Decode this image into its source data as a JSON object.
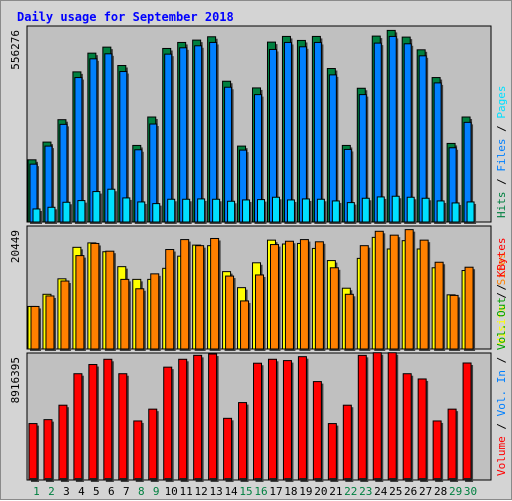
{
  "colors": {
    "hits": "#008040",
    "files": "#0080ff",
    "pages": "#00e0ff",
    "visits": "#ffff00",
    "sites": "#ff8000",
    "vol_in": "#ff0000",
    "vol_out": "#00a000",
    "weekend_label": "#008040",
    "title": "#0000ff",
    "plot_bg": "#c0c0c0",
    "outline": "#000000"
  },
  "chart_data": [
    {
      "type": "bar",
      "title": "Daily usage for September 2018",
      "ytick": "556276",
      "ymax": 556276,
      "categories": [
        "1",
        "2",
        "3",
        "4",
        "5",
        "6",
        "7",
        "8",
        "9",
        "10",
        "11",
        "12",
        "13",
        "14",
        "15",
        "16",
        "17",
        "18",
        "19",
        "20",
        "21",
        "22",
        "23",
        "24",
        "25",
        "26",
        "27",
        "28",
        "29",
        "30"
      ],
      "weekend_days": [
        "1",
        "2",
        "8",
        "9",
        "15",
        "16",
        "22",
        "23",
        "29",
        "30"
      ],
      "legend": [
        {
          "text": "Hits",
          "color_key": "hits"
        },
        {
          "text": "Files",
          "color_key": "files"
        },
        {
          "text": "Pages",
          "color_key": "pages"
        }
      ],
      "series": [
        {
          "name": "Hits",
          "values": [
            186000,
            239000,
            306000,
            449000,
            505000,
            523000,
            468000,
            229000,
            314000,
            519000,
            537000,
            544000,
            554000,
            421000,
            227000,
            401000,
            538000,
            555000,
            543000,
            555000,
            459000,
            229000,
            400000,
            556000,
            573000,
            553000,
            515000,
            432000,
            235000,
            314000
          ]
        },
        {
          "name": "Files",
          "values": [
            173000,
            227000,
            292000,
            432000,
            488000,
            503000,
            450000,
            216000,
            293000,
            502000,
            521000,
            527000,
            537000,
            403000,
            215000,
            381000,
            516000,
            537000,
            524000,
            537000,
            440000,
            217000,
            381000,
            535000,
            555000,
            533000,
            497000,
            416000,
            222000,
            298000
          ]
        },
        {
          "name": "Pages",
          "values": [
            39000,
            44000,
            59000,
            64000,
            91000,
            98000,
            72000,
            60000,
            55000,
            68000,
            68000,
            69000,
            68000,
            62000,
            66000,
            67000,
            74000,
            66000,
            69000,
            68000,
            63000,
            58000,
            71000,
            75000,
            77000,
            74000,
            71000,
            63000,
            57000,
            60000
          ]
        }
      ]
    },
    {
      "type": "bar",
      "ytick": "20449",
      "ymax": 20449,
      "categories": [
        "1",
        "2",
        "3",
        "4",
        "5",
        "6",
        "7",
        "8",
        "9",
        "10",
        "11",
        "12",
        "13",
        "14",
        "15",
        "16",
        "17",
        "18",
        "19",
        "20",
        "21",
        "22",
        "23",
        "24",
        "25",
        "26",
        "27",
        "28",
        "29",
        "30"
      ],
      "legend": [
        {
          "text": "Visits",
          "color_key": "visits"
        },
        {
          "text": "Sites",
          "color_key": "sites"
        }
      ],
      "series": [
        {
          "name": "Visits",
          "values": [
            7700,
            9900,
            12700,
            18400,
            19200,
            17600,
            14900,
            12600,
            12600,
            14600,
            16800,
            18800,
            18700,
            14000,
            11100,
            15600,
            19700,
            19000,
            19100,
            18200,
            16000,
            11000,
            16400,
            20200,
            18100,
            19600,
            18100,
            14700,
            9800,
            14200
          ]
        },
        {
          "name": "Sites",
          "values": [
            7700,
            9600,
            12300,
            16900,
            19100,
            17700,
            12600,
            10900,
            13600,
            18000,
            19800,
            18700,
            20000,
            13200,
            8700,
            13400,
            18900,
            19500,
            19800,
            19400,
            14700,
            9900,
            18700,
            21300,
            20600,
            21600,
            19700,
            15700,
            9700,
            14800
          ]
        }
      ]
    },
    {
      "type": "bar",
      "ytick": "8916395",
      "ymax": 8916395,
      "categories": [
        "1",
        "2",
        "3",
        "4",
        "5",
        "6",
        "7",
        "8",
        "9",
        "10",
        "11",
        "12",
        "13",
        "14",
        "15",
        "16",
        "17",
        "18",
        "19",
        "20",
        "21",
        "22",
        "23",
        "24",
        "25",
        "26",
        "27",
        "28",
        "29",
        "30"
      ],
      "legend": [
        {
          "text": "Volume",
          "color_key": "vol_in"
        },
        {
          "text": "Vol. In",
          "color_key": "files"
        },
        {
          "text": "Vol. Out",
          "color_key": "vol_out"
        },
        {
          "text": "KBytes",
          "color_key": "vol_in"
        }
      ],
      "series": [
        {
          "name": "KBytes",
          "values": [
            4300000,
            4600000,
            5700000,
            8100000,
            8800000,
            9200000,
            8100000,
            4500000,
            5400000,
            8600000,
            9200000,
            9500000,
            9600000,
            4700000,
            5900000,
            8900000,
            9200000,
            9100000,
            9400000,
            7500000,
            4300000,
            5700000,
            9500000,
            9700000,
            9700000,
            8100000,
            7700000,
            4500000,
            5400000,
            8916395
          ]
        }
      ]
    }
  ]
}
